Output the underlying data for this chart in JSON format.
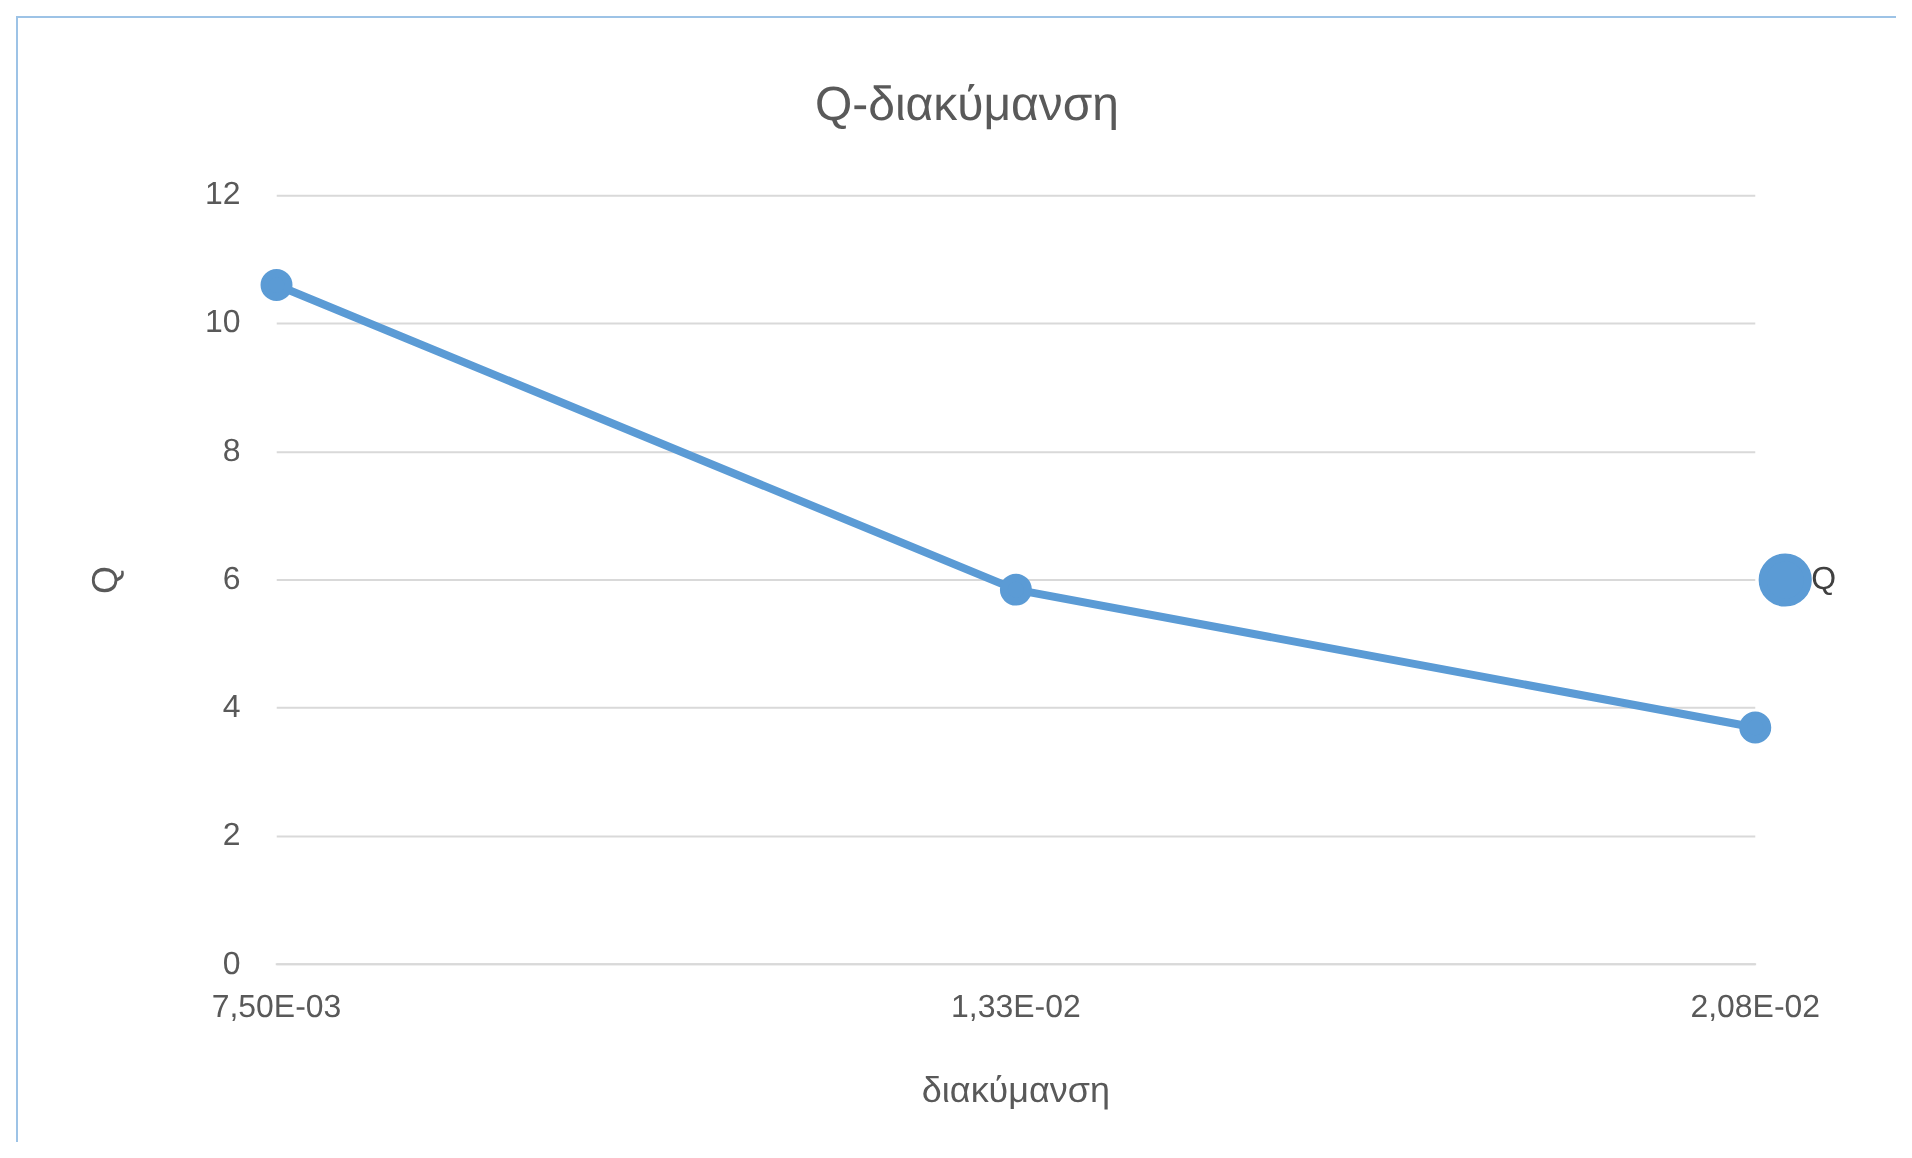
{
  "chart_data": {
    "type": "line",
    "title": "Q-διακύμανση",
    "xlabel": "διακύμανση",
    "ylabel": "Q",
    "categories": [
      "7,50E-03",
      "1,33E-02",
      "2,08E-02"
    ],
    "series": [
      {
        "name": "Q",
        "color": "#5b9bd5",
        "values": [
          10.6,
          5.85,
          3.7
        ]
      }
    ],
    "ylim": [
      0,
      12
    ],
    "yticks": [
      0,
      2,
      4,
      6,
      8,
      10,
      12
    ],
    "grid": "y",
    "legend": "right",
    "marker": "circle",
    "line_style": "solid"
  }
}
